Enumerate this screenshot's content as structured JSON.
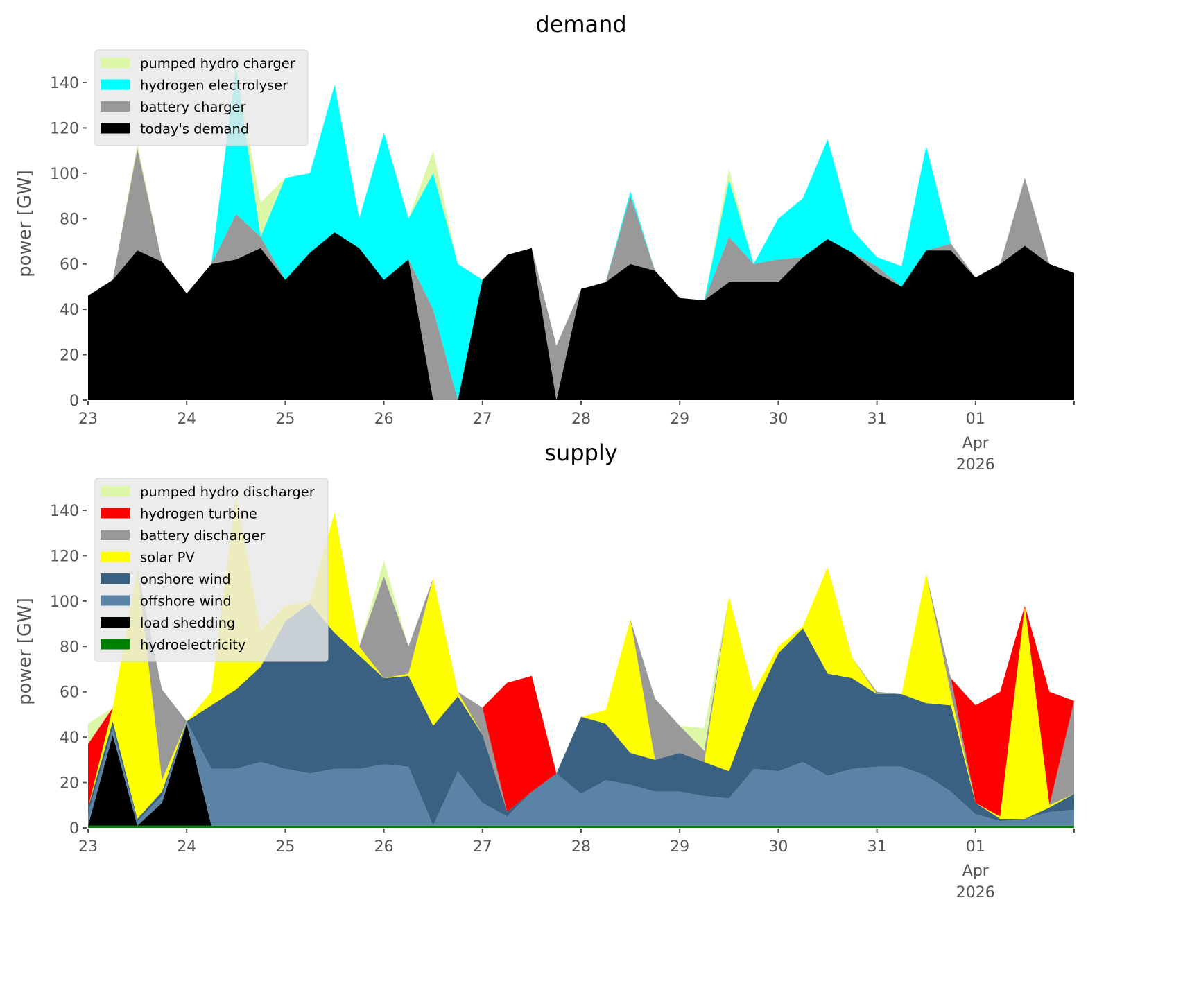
{
  "chart_data": [
    {
      "type": "area",
      "stacked": true,
      "title": "demand",
      "xlabel": "",
      "ylabel": "power [GW]",
      "ylim": [
        0,
        155.6
      ],
      "x_start_day": 23,
      "x_step_days": 0.25,
      "xlim_days": [
        23,
        33
      ],
      "yticks": [
        0,
        20,
        40,
        60,
        80,
        100,
        120,
        140
      ],
      "xtick_labels": [
        "23",
        "24",
        "25",
        "26",
        "27",
        "28",
        "29",
        "30",
        "31",
        "01",
        ""
      ],
      "xtick_sublabels": [
        "Apr",
        "2026"
      ],
      "legend_position": "top-left",
      "grid": false,
      "series": [
        {
          "name": "today's demand",
          "color": "#000000",
          "values": [
            46,
            53,
            66,
            61,
            47,
            60,
            62,
            67,
            53,
            65,
            74,
            67,
            53,
            62,
            0,
            0,
            53,
            64,
            67,
            0,
            49,
            52,
            60,
            57,
            45,
            44,
            52,
            52,
            52,
            63,
            71,
            65,
            56,
            50,
            66,
            66,
            54,
            60,
            68,
            60,
            56
          ]
        },
        {
          "name": "battery charger",
          "color": "#999999",
          "values": [
            0,
            0,
            45,
            0,
            0,
            0,
            20,
            5,
            0,
            0,
            0,
            0,
            0,
            0,
            40,
            0,
            0,
            0,
            0,
            24,
            0,
            0,
            30,
            0,
            0,
            0,
            20,
            8,
            10,
            0,
            0,
            0,
            3,
            0,
            0,
            3,
            0,
            0,
            30,
            0,
            0
          ]
        },
        {
          "name": "hydrogen electrolyser",
          "color": "#00ffff",
          "values": [
            0,
            0,
            0,
            0,
            0,
            0,
            65,
            0,
            45,
            35,
            65,
            13,
            65,
            18,
            60,
            60,
            0,
            0,
            0,
            0,
            0,
            0,
            2,
            0,
            0,
            0,
            25,
            0,
            18,
            26,
            44,
            10,
            4,
            9,
            46,
            0,
            0,
            0,
            0,
            0,
            0
          ]
        },
        {
          "name": "pumped hydro charger",
          "color": "#dcf7a8",
          "values": [
            0,
            0,
            2,
            0,
            0,
            0,
            0,
            15,
            0,
            0,
            0,
            0,
            0,
            0,
            10,
            0,
            0,
            0,
            0,
            0,
            0,
            0,
            0,
            0,
            0,
            0,
            5,
            0,
            0,
            0,
            0,
            0,
            0,
            0,
            0,
            0,
            0,
            0,
            0,
            0,
            0
          ]
        }
      ]
    },
    {
      "type": "area",
      "stacked": true,
      "title": "supply",
      "xlabel": "",
      "ylabel": "power [GW]",
      "ylim": [
        0,
        155.6
      ],
      "x_start_day": 23,
      "x_step_days": 0.25,
      "xlim_days": [
        23,
        33
      ],
      "yticks": [
        0,
        20,
        40,
        60,
        80,
        100,
        120,
        140
      ],
      "xtick_labels": [
        "23",
        "24",
        "25",
        "26",
        "27",
        "28",
        "29",
        "30",
        "31",
        "01",
        ""
      ],
      "xtick_sublabels": [
        "Apr",
        "2026"
      ],
      "legend_position": "top-left",
      "grid": false,
      "series": [
        {
          "name": "hydroelectricity",
          "color": "#008000",
          "values": [
            1,
            1,
            1,
            1,
            1,
            1,
            1,
            1,
            1,
            1,
            1,
            1,
            1,
            1,
            1,
            1,
            1,
            1,
            1,
            1,
            1,
            1,
            1,
            1,
            1,
            1,
            1,
            1,
            1,
            1,
            1,
            1,
            1,
            1,
            1,
            1,
            1,
            1,
            1,
            1,
            1
          ]
        },
        {
          "name": "load shedding",
          "color": "#000000",
          "values": [
            0,
            40,
            0,
            10,
            45,
            0,
            0,
            0,
            0,
            0,
            0,
            0,
            0,
            0,
            0,
            0,
            0,
            0,
            0,
            0,
            0,
            0,
            0,
            0,
            0,
            0,
            0,
            0,
            0,
            0,
            0,
            0,
            0,
            0,
            0,
            0,
            0,
            0,
            0,
            0,
            0
          ]
        },
        {
          "name": "offshore wind",
          "color": "#5b83a5",
          "values": [
            5,
            3,
            2,
            3,
            1,
            25,
            25,
            28,
            25,
            23,
            25,
            25,
            27,
            26,
            0,
            24,
            10,
            4,
            15,
            23,
            14,
            20,
            18,
            15,
            15,
            13,
            12,
            25,
            24,
            28,
            22,
            25,
            26,
            26,
            22,
            15,
            5,
            2,
            3,
            6,
            7
          ]
        },
        {
          "name": "onshore wind",
          "color": "#3b6182",
          "values": [
            3,
            3,
            1,
            2,
            0,
            28,
            35,
            42,
            65,
            75,
            60,
            50,
            38,
            40,
            44,
            33,
            30,
            2,
            0,
            0,
            34,
            25,
            14,
            14,
            17,
            15,
            12,
            28,
            52,
            59,
            45,
            40,
            32,
            32,
            32,
            38,
            5,
            1,
            0,
            2,
            7
          ]
        },
        {
          "name": "solar PV",
          "color": "#ffff00",
          "values": [
            0,
            6,
            110,
            5,
            0,
            6,
            86,
            16,
            7,
            1,
            53,
            4,
            0,
            1,
            65,
            2,
            0,
            0,
            0,
            0,
            0,
            6,
            59,
            0,
            0,
            0,
            77,
            6,
            3,
            1,
            47,
            9,
            0,
            0,
            57,
            5,
            0,
            1,
            94,
            1,
            0
          ]
        },
        {
          "name": "battery discharger",
          "color": "#999999",
          "values": [
            0,
            0,
            0,
            40,
            0,
            0,
            0,
            0,
            0,
            0,
            0,
            0,
            45,
            12,
            0,
            0,
            12,
            0,
            0,
            0,
            0,
            0,
            0,
            27,
            12,
            5,
            0,
            0,
            0,
            0,
            0,
            0,
            1,
            0,
            0,
            7,
            0,
            0,
            0,
            0,
            41
          ]
        },
        {
          "name": "hydrogen turbine",
          "color": "#ff0000",
          "values": [
            28,
            0,
            0,
            0,
            0,
            0,
            0,
            0,
            0,
            0,
            0,
            0,
            0,
            0,
            0,
            0,
            0,
            57,
            51,
            0,
            0,
            0,
            0,
            0,
            0,
            0,
            0,
            0,
            0,
            0,
            0,
            0,
            0,
            0,
            0,
            0,
            43,
            55,
            0,
            50,
            0
          ]
        },
        {
          "name": "pumped hydro discharger",
          "color": "#dcf7a8",
          "values": [
            9,
            0,
            0,
            0,
            0,
            0,
            0,
            0,
            0,
            0,
            0,
            0,
            7,
            0,
            0,
            0,
            0,
            0,
            0,
            0,
            0,
            0,
            0,
            0,
            0,
            10,
            0,
            0,
            0,
            0,
            0,
            0,
            0,
            0,
            0,
            0,
            0,
            0,
            0,
            0,
            0
          ]
        }
      ]
    }
  ]
}
